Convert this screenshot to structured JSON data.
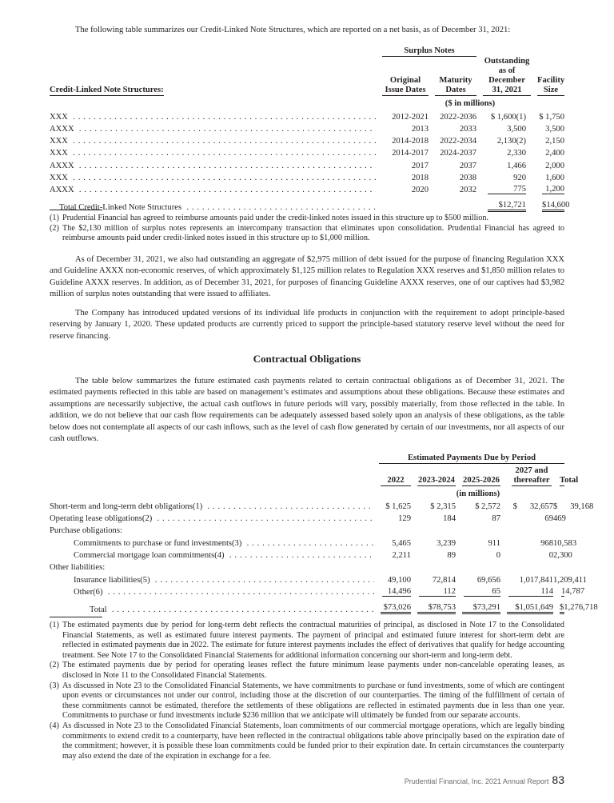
{
  "intro": "The following table summarizes our Credit-Linked Note Structures, which are reported on a net basis, as of December 31, 2021:",
  "clns": {
    "group_header": "Surplus Notes",
    "headers": [
      "Credit-Linked Note Structures:",
      "Original Issue Dates",
      "Maturity Dates",
      "Outstanding as of December 31, 2021",
      "Facility Size"
    ],
    "units": "($ in millions)",
    "rows": [
      [
        "XXX",
        "2012-2021",
        "2022-2036",
        "$ 1,600(1)",
        "$ 1,750"
      ],
      [
        "AXXX",
        "2013",
        "2033",
        "3,500",
        "3,500"
      ],
      [
        "XXX",
        "2014-2018",
        "2022-2034",
        "2,130(2)",
        "2,150"
      ],
      [
        "XXX",
        "2014-2017",
        "2024-2037",
        "2,330",
        "2,400"
      ],
      [
        "AXXX",
        "2017",
        "2037",
        "1,466",
        "2,000"
      ],
      [
        "XXX",
        "2018",
        "2038",
        "920",
        "1,600"
      ],
      [
        "AXXX",
        "2020",
        "2032",
        "775",
        "1,200"
      ]
    ],
    "total": [
      "Total Credit-Linked Note Structures",
      "",
      "",
      "$12,721",
      "$14,600"
    ],
    "footnotes": [
      [
        "(1)",
        "Prudential Financial has agreed to reimburse amounts paid under the credit-linked notes issued in this structure up to $500 million."
      ],
      [
        "(2)",
        "The $2,130 million of surplus notes represents an intercompany transaction that eliminates upon consolidation. Prudential Financial has agreed to reimburse amounts paid under credit-linked notes issued in this structure up to $1,000 million."
      ]
    ]
  },
  "para1": "As of December 31, 2021, we also had outstanding an aggregate of $2,975 million of debt issued for the purpose of financing Regulation XXX and Guideline AXXX non-economic reserves, of which approximately $1,125 million relates to Regulation XXX reserves and $1,850 million relates to Guideline AXXX reserves. In addition, as of December 31, 2021, for purposes of financing Guideline AXXX reserves, one of our captives had $3,982 million of surplus notes outstanding that were issued to affiliates.",
  "para2": "The Company has introduced updated versions of its individual life products in conjunction with the requirement to adopt principle-based reserving by January 1, 2020. These updated products are currently priced to support the principle-based statutory reserve level without the need for reserve financing.",
  "heading": "Contractual Obligations",
  "para3": "The table below summarizes the future estimated cash payments related to certain contractual obligations as of December 31, 2021. The estimated payments reflected in this table are based on management’s estimates and assumptions about these obligations. Because these estimates and assumptions are necessarily subjective, the actual cash outflows in future periods will vary, possibly materially, from those reflected in the table. In addition, we do not believe that our cash flow requirements can be adequately assessed based solely upon an analysis of these obligations, as the table below does not contemplate all aspects of our cash inflows, such as the level of cash flow generated by certain of our investments, nor all aspects of our cash outflows.",
  "obligations": {
    "group_header": "Estimated Payments Due by Period",
    "headers": [
      "2022",
      "2023-2024",
      "2025-2026",
      "2027 and thereafter",
      "Total"
    ],
    "units": "(in millions)",
    "rows": [
      {
        "label": "Short-term and long-term debt obligations(1)",
        "indent": 0,
        "values": [
          "$ 1,625",
          "$ 2,315",
          "$ 2,572",
          "$      32,657",
          "$      39,168"
        ]
      },
      {
        "label": "Operating lease obligations(2)",
        "indent": 0,
        "values": [
          "129",
          "184",
          "87",
          "69",
          "469"
        ]
      },
      {
        "label": "Purchase obligations:",
        "indent": 0,
        "values": []
      },
      {
        "label": "Commitments to purchase or fund investments(3)",
        "indent": 1,
        "values": [
          "5,465",
          "3,239",
          "911",
          "968",
          "10,583"
        ]
      },
      {
        "label": "Commercial mortgage loan commitments(4)",
        "indent": 1,
        "values": [
          "2,211",
          "89",
          "0",
          "0",
          "2,300"
        ]
      },
      {
        "label": "Other liabilities:",
        "indent": 0,
        "values": []
      },
      {
        "label": "Insurance liabilities(5)",
        "indent": 1,
        "values": [
          "49,100",
          "72,814",
          "69,656",
          "1,017,841",
          "1,209,411"
        ]
      },
      {
        "label": "Other(6)",
        "indent": 1,
        "values": [
          "14,496",
          "112",
          "65",
          "114",
          "14,787"
        ]
      }
    ],
    "total": {
      "label": "Total",
      "values": [
        "$73,026",
        "$78,753",
        "$73,291",
        "$1,051,649",
        "$1,276,718"
      ]
    },
    "footnotes": [
      [
        "(1)",
        "The estimated payments due by period for long-term debt reflects the contractual maturities of principal, as disclosed in Note 17 to the Consolidated Financial Statements, as well as estimated future interest payments. The payment of principal and estimated future interest for short-term debt are reflected in estimated payments due in 2022. The estimate for future interest payments includes the effect of derivatives that qualify for hedge accounting treatment. See Note 17 to the Consolidated Financial Statements for additional information concerning our short-term and long-term debt."
      ],
      [
        "(2)",
        "The estimated payments due by period for operating leases reflect the future minimum lease payments under non-cancelable operating leases, as disclosed in Note 11 to the Consolidated Financial Statements."
      ],
      [
        "(3)",
        "As discussed in Note 23 to the Consolidated Financial Statements, we have commitments to purchase or fund investments, some of which are contingent upon events or circumstances not under our control, including those at the discretion of our counterparties. The timing of the fulfillment of certain of these commitments cannot be estimated, therefore the settlements of these obligations are reflected in estimated payments due in less than one year. Commitments to purchase or fund investments include $236 million that we anticipate will ultimately be funded from our separate accounts."
      ],
      [
        "(4)",
        "As discussed in Note 23 to the Consolidated Financial Statements, loan commitments of our commercial mortgage operations, which are legally binding commitments to extend credit to a counterparty, have been reflected in the contractual obligations table above principally based on the expiration date of the commitment; however, it is possible these loan commitments could be funded prior to their expiration date. In certain circumstances the counterparty may also extend the date of the expiration in exchange for a fee."
      ]
    ]
  },
  "footer": {
    "text": "Prudential Financial, Inc. 2021 Annual Report",
    "page": "83"
  }
}
